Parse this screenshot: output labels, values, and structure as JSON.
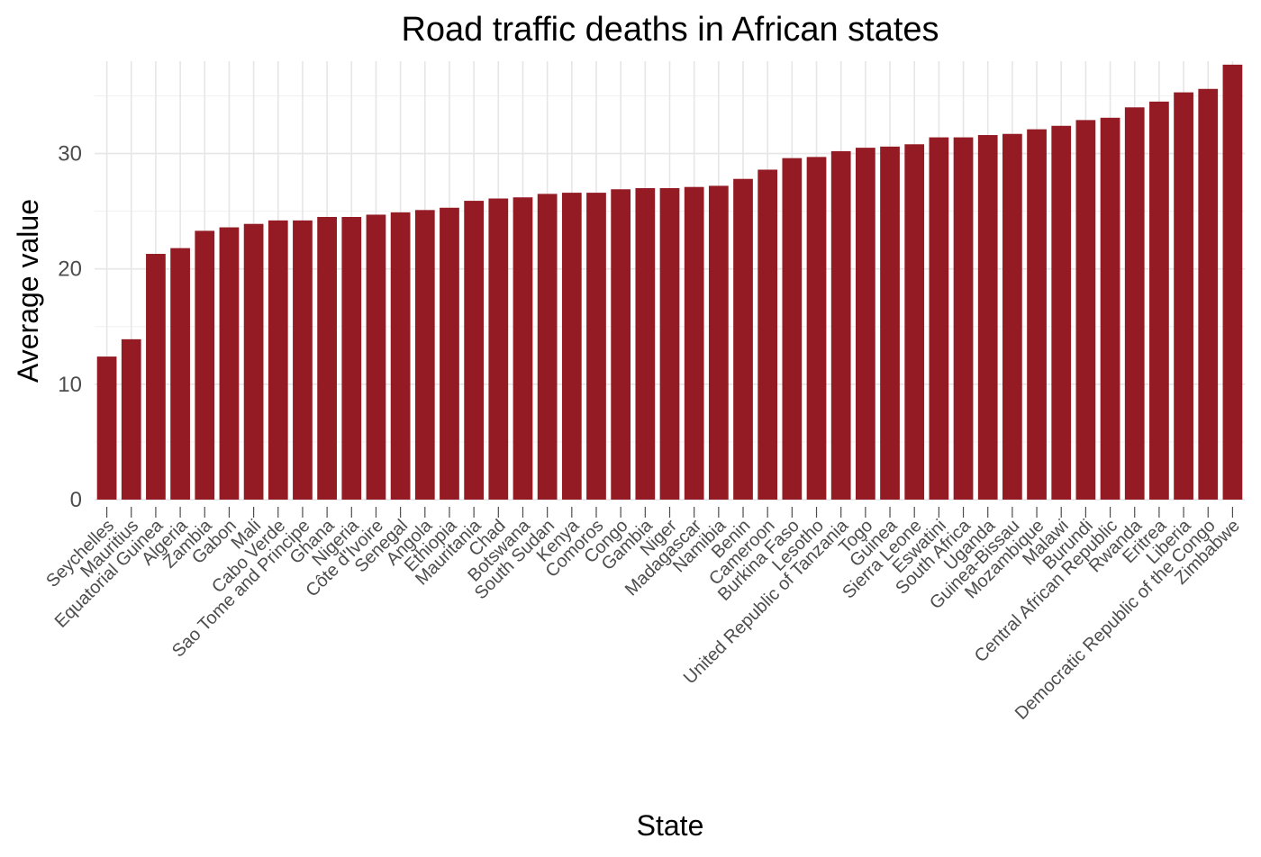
{
  "chart_data": {
    "type": "bar",
    "title": "Road traffic deaths in African states",
    "xlabel": "State",
    "ylabel": "Average value",
    "ylim": [
      0,
      38
    ],
    "yticks": [
      0,
      10,
      20,
      30
    ],
    "grid": true,
    "bar_color": "#941b23",
    "categories": [
      "Seychelles",
      "Mauritius",
      "Equatorial Guinea",
      "Algeria",
      "Zambia",
      "Gabon",
      "Mali",
      "Cabo Verde",
      "Sao Tome and Principe",
      "Ghana",
      "Nigeria",
      "Côte d'Ivoire",
      "Senegal",
      "Angola",
      "Ethiopia",
      "Mauritania",
      "Chad",
      "Botswana",
      "South Sudan",
      "Kenya",
      "Comoros",
      "Congo",
      "Gambia",
      "Niger",
      "Madagascar",
      "Namibia",
      "Benin",
      "Cameroon",
      "Burkina Faso",
      "Lesotho",
      "United Republic of Tanzania",
      "Togo",
      "Guinea",
      "Sierra Leone",
      "Eswatini",
      "South Africa",
      "Uganda",
      "Guinea-Bissau",
      "Mozambique",
      "Malawi",
      "Burundi",
      "Central African Republic",
      "Rwanda",
      "Eritrea",
      "Liberia",
      "Democratic Republic of the Congo",
      "Zimbabwe"
    ],
    "values": [
      12.4,
      13.9,
      21.3,
      21.8,
      23.3,
      23.6,
      23.9,
      24.2,
      24.2,
      24.5,
      24.5,
      24.7,
      24.9,
      25.1,
      25.3,
      25.9,
      26.1,
      26.2,
      26.5,
      26.6,
      26.6,
      26.9,
      27.0,
      27.0,
      27.1,
      27.2,
      27.8,
      28.6,
      29.6,
      29.7,
      30.2,
      30.5,
      30.6,
      30.8,
      31.4,
      31.4,
      31.6,
      31.7,
      32.1,
      32.4,
      32.9,
      33.1,
      34.0,
      34.5,
      35.3,
      35.6,
      37.7
    ]
  }
}
